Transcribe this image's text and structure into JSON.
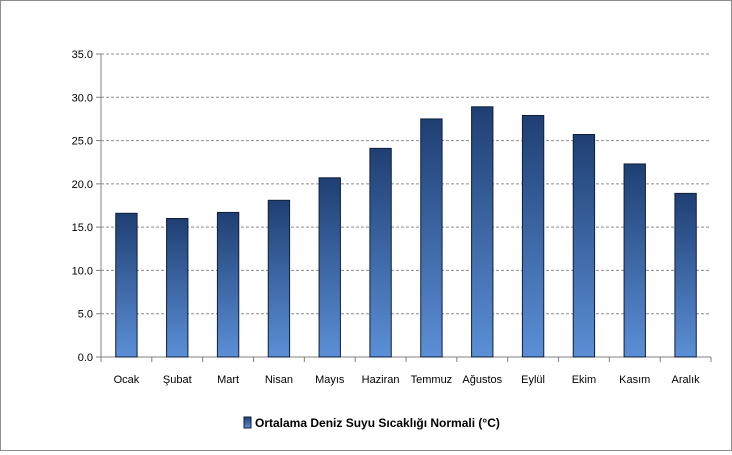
{
  "chart_data": {
    "type": "bar",
    "categories": [
      "Ocak",
      "Şubat",
      "Mart",
      "Nisan",
      "Mayıs",
      "Haziran",
      "Temmuz",
      "Ağustos",
      "Eylül",
      "Ekim",
      "Kasım",
      "Aralık"
    ],
    "series": [
      {
        "name": "Ortalama Deniz Suyu Sıcaklığı Normali (°C)",
        "values": [
          16.6,
          16.0,
          16.7,
          18.1,
          20.7,
          24.1,
          27.5,
          28.9,
          27.9,
          25.7,
          22.3,
          18.9
        ]
      }
    ],
    "yticks": [
      "0.0",
      "5.0",
      "10.0",
      "15.0",
      "20.0",
      "25.0",
      "30.0",
      "35.0"
    ],
    "ylim": [
      0,
      35
    ],
    "grid": true,
    "legend_position": "bottom",
    "title": "",
    "xlabel": "",
    "ylabel": "",
    "colors": {
      "bar_top": "#1f3f73",
      "bar_bottom": "#5b8fd6",
      "bar_edge": "#0f1f3a",
      "grid": "#8c8c8c"
    }
  }
}
